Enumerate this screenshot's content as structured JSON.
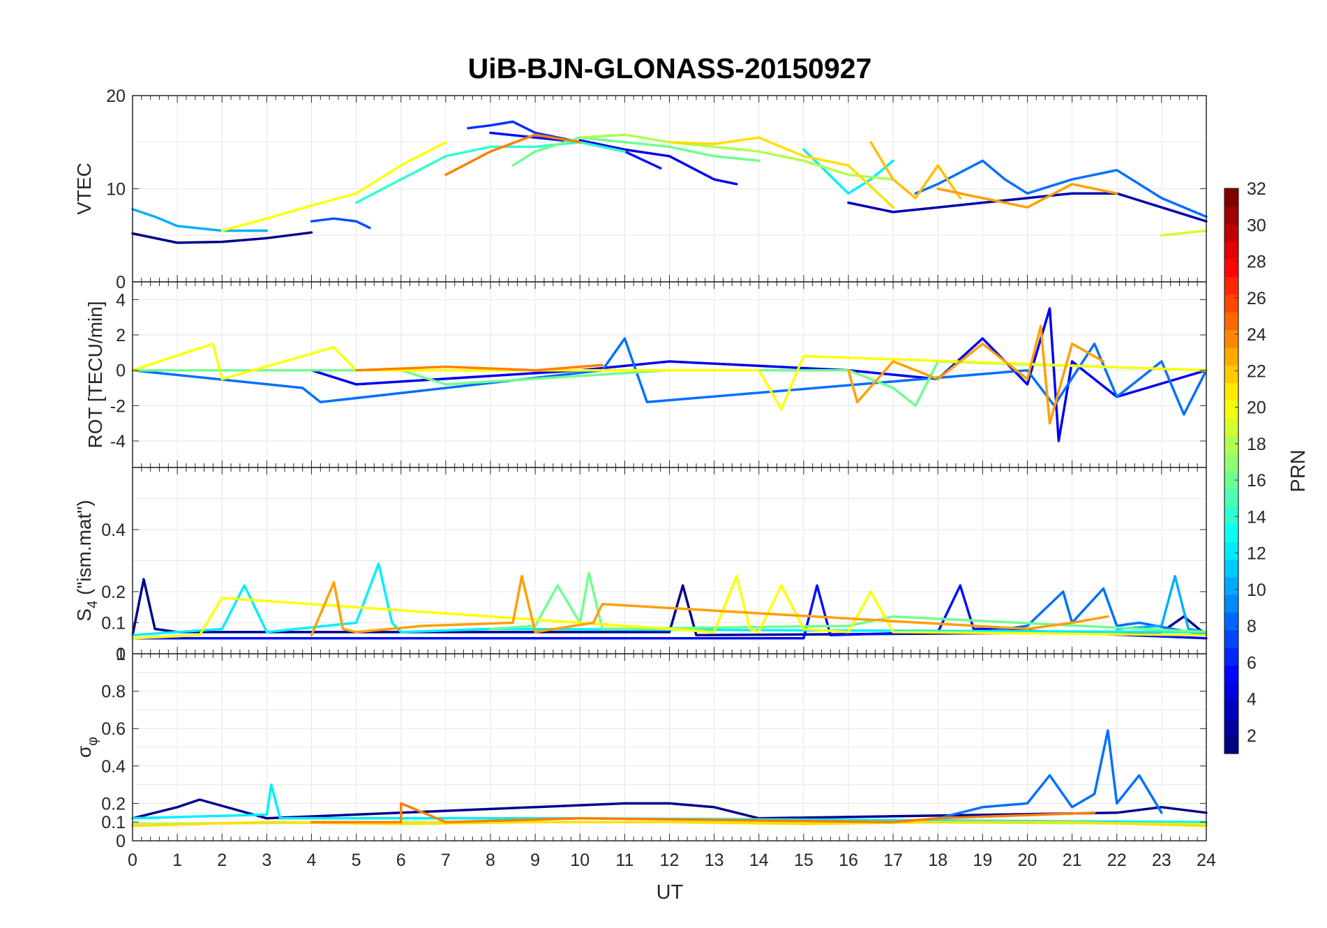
{
  "figure": {
    "title": "UiB-BJN-GLONASS-20150927",
    "xlabel": "UT",
    "x_ticks": [
      "0",
      "1",
      "2",
      "3",
      "4",
      "5",
      "6",
      "7",
      "8",
      "9",
      "10",
      "11",
      "12",
      "13",
      "14",
      "15",
      "16",
      "17",
      "18",
      "19",
      "20",
      "21",
      "22",
      "23",
      "24"
    ]
  },
  "panels": [
    {
      "ylabel": "VTEC",
      "ylabel_sub": "",
      "ylabel_tail": "",
      "y_tick_labels": [
        "0",
        "10",
        "20"
      ]
    },
    {
      "ylabel": "ROT [TECU/min]",
      "ylabel_sub": "",
      "ylabel_tail": "",
      "y_tick_labels": [
        "-4",
        "-2",
        "0",
        "2",
        "4"
      ]
    },
    {
      "ylabel": "S",
      "ylabel_sub": "4",
      "ylabel_tail": " (\"ism.mat\")",
      "y_tick_labels": [
        "0",
        "0.1",
        "0.2",
        "0.4"
      ]
    },
    {
      "ylabel": "σ",
      "ylabel_sub": "φ",
      "ylabel_tail": "",
      "y_tick_labels": [
        "0",
        "0.1",
        "0.2",
        "0.4",
        "0.6",
        "0.8",
        "1"
      ]
    }
  ],
  "colorbar": {
    "label": "PRN",
    "tick_labels": [
      "2",
      "4",
      "6",
      "8",
      "10",
      "12",
      "14",
      "16",
      "18",
      "20",
      "22",
      "24",
      "26",
      "28",
      "30",
      "32"
    ],
    "colormap": "jet"
  },
  "chart_data": [
    {
      "type": "line",
      "title": "UiB-BJN-GLONASS-20150927",
      "xlabel": "UT",
      "ylabel": "VTEC",
      "xlim": [
        0,
        24
      ],
      "ylim": [
        0,
        20
      ],
      "grid": true,
      "series": [
        {
          "prn": 1,
          "color": "#00008f",
          "x": [
            0,
            1,
            2,
            3,
            4
          ],
          "y": [
            5.2,
            4.2,
            4.3,
            4.7,
            5.3
          ]
        },
        {
          "prn": 2,
          "color": "#0000af",
          "x": [
            16,
            17,
            18,
            19,
            20,
            21,
            22,
            23,
            24
          ],
          "y": [
            8.5,
            7.5,
            8.0,
            8.5,
            9.0,
            9.5,
            9.5,
            8.0,
            6.5
          ]
        },
        {
          "prn": 4,
          "color": "#0000ef",
          "x": [
            10,
            11,
            12,
            13,
            13.5
          ],
          "y": [
            15.2,
            14.2,
            13.5,
            11,
            10.5
          ]
        },
        {
          "prn": 5,
          "color": "#000fff",
          "x": [
            8,
            9,
            10,
            11,
            11.8
          ],
          "y": [
            16,
            15.5,
            15,
            14,
            12.2
          ]
        },
        {
          "prn": 6,
          "color": "#002fff",
          "x": [
            7.5,
            8,
            8.5,
            9,
            10
          ],
          "y": [
            16.5,
            16.8,
            17.2,
            16,
            15
          ]
        },
        {
          "prn": 7,
          "color": "#004fff",
          "x": [
            4,
            4.5,
            5,
            5.3
          ],
          "y": [
            6.5,
            6.8,
            6.5,
            5.8
          ]
        },
        {
          "prn": 8,
          "color": "#006fff",
          "x": [
            17.5,
            18,
            19,
            19.5,
            20,
            21,
            22,
            23,
            24
          ],
          "y": [
            9.5,
            10.5,
            13,
            11,
            9.5,
            11,
            12,
            9,
            7
          ]
        },
        {
          "prn": 10,
          "color": "#00afff",
          "x": [
            0,
            0.5,
            1,
            2,
            3
          ],
          "y": [
            7.8,
            7.0,
            6.0,
            5.5,
            5.5
          ]
        },
        {
          "prn": 12,
          "color": "#00efff",
          "x": [
            15,
            16,
            16.5,
            17
          ],
          "y": [
            14.2,
            9.5,
            11,
            13
          ]
        },
        {
          "prn": 14,
          "color": "#2fffcf",
          "x": [
            5,
            6,
            7,
            8,
            9,
            10,
            11
          ],
          "y": [
            8.5,
            11,
            13.5,
            14.5,
            14.5,
            15,
            14
          ]
        },
        {
          "prn": 16,
          "color": "#6fff8f",
          "x": [
            8.5,
            9,
            10,
            11,
            12,
            13,
            14
          ],
          "y": [
            12.5,
            14,
            15.5,
            15,
            14.5,
            13.5,
            13
          ]
        },
        {
          "prn": 18,
          "color": "#afff4f",
          "x": [
            10,
            11,
            12,
            13,
            14,
            15,
            16,
            17
          ],
          "y": [
            15.5,
            15.8,
            15,
            14.5,
            14,
            13,
            11.5,
            11
          ]
        },
        {
          "prn": 19,
          "color": "#cfff2f",
          "x": [
            23,
            24
          ],
          "y": [
            5,
            5.5
          ]
        },
        {
          "prn": 20,
          "color": "#ffff00",
          "x": [
            2,
            3,
            4,
            5,
            6,
            7
          ],
          "y": [
            5.5,
            6.8,
            8.2,
            9.5,
            12.5,
            15
          ]
        },
        {
          "prn": 21,
          "color": "#ffdf00",
          "x": [
            12,
            13,
            14,
            15,
            16,
            17
          ],
          "y": [
            15,
            14.8,
            15.5,
            13.5,
            12.5,
            8
          ]
        },
        {
          "prn": 22,
          "color": "#ffbf00",
          "x": [
            16.5,
            17,
            17.5,
            18,
            18.5
          ],
          "y": [
            15,
            11,
            9,
            12.5,
            9
          ]
        },
        {
          "prn": 23,
          "color": "#ff9f00",
          "x": [
            18,
            19,
            20,
            21,
            22
          ],
          "y": [
            10,
            9,
            8,
            10.5,
            9.5
          ]
        },
        {
          "prn": 24,
          "color": "#ff7f00",
          "x": [
            7,
            8,
            9,
            10
          ],
          "y": [
            11.5,
            14,
            15.8,
            15
          ]
        }
      ]
    },
    {
      "type": "line",
      "xlabel": "UT",
      "ylabel": "ROT [TECU/min]",
      "xlim": [
        0,
        24
      ],
      "ylim": [
        -5.5,
        5
      ],
      "grid": true,
      "series": [
        {
          "prn": 4,
          "color": "#0000ef",
          "x": [
            0,
            4,
            5,
            10,
            12,
            16,
            18,
            19,
            20,
            20.5,
            20.7,
            21,
            22,
            24
          ],
          "y": [
            0,
            0,
            -0.8,
            0,
            0.5,
            0,
            -0.5,
            1.8,
            -0.8,
            3.5,
            -4,
            0.5,
            -1.5,
            0
          ]
        },
        {
          "prn": 8,
          "color": "#006fff",
          "x": [
            0,
            3.8,
            4.2,
            10.5,
            11,
            11.5,
            20,
            20.6,
            21.5,
            22,
            23,
            23.5,
            24
          ],
          "y": [
            0,
            -1,
            -1.8,
            0,
            1.8,
            -1.8,
            0,
            -2,
            1.5,
            -1.5,
            0.5,
            -2.5,
            0
          ]
        },
        {
          "prn": 16,
          "color": "#6fff8f",
          "x": [
            0,
            6,
            7,
            12,
            16,
            17,
            17.5,
            18,
            24
          ],
          "y": [
            0,
            0,
            -0.8,
            0,
            0,
            -1,
            -2,
            0.5,
            0
          ]
        },
        {
          "prn": 20,
          "color": "#ffff00",
          "x": [
            0,
            1.8,
            2,
            4.5,
            5,
            14,
            14.5,
            15,
            24
          ],
          "y": [
            0,
            1.5,
            -0.5,
            1.3,
            0,
            0,
            -2.2,
            0.8,
            0
          ]
        },
        {
          "prn": 23,
          "color": "#ff9f00",
          "x": [
            16,
            16.2,
            17,
            18,
            19,
            20,
            20.3,
            20.5,
            21,
            21.7
          ],
          "y": [
            0,
            -1.8,
            0.5,
            -0.5,
            1.5,
            -0.5,
            2.5,
            -3,
            1.5,
            0.5
          ]
        },
        {
          "prn": 24,
          "color": "#ff7f00",
          "x": [
            5,
            7,
            9,
            10.5
          ],
          "y": [
            0,
            0.2,
            0,
            0.3
          ]
        }
      ]
    },
    {
      "type": "line",
      "xlabel": "UT",
      "ylabel": "S4 (\"ism.mat\")",
      "xlim": [
        0,
        24
      ],
      "ylim": [
        0,
        0.6
      ],
      "grid": true,
      "series": [
        {
          "prn": 1,
          "color": "#00008f",
          "x": [
            0,
            0.25,
            0.5,
            1,
            12,
            12.3,
            12.6,
            23,
            23.5,
            24
          ],
          "y": [
            0.06,
            0.24,
            0.08,
            0.07,
            0.07,
            0.22,
            0.06,
            0.07,
            0.12,
            0.06
          ]
        },
        {
          "prn": 5,
          "color": "#000fff",
          "x": [
            0,
            15,
            15.3,
            15.6,
            18,
            18.5,
            18.8,
            19,
            24
          ],
          "y": [
            0.05,
            0.05,
            0.22,
            0.06,
            0.07,
            0.22,
            0.08,
            0.08,
            0.05
          ]
        },
        {
          "prn": 8,
          "color": "#006fff",
          "x": [
            19,
            20,
            20.8,
            21,
            21.7,
            22,
            22.5,
            24
          ],
          "y": [
            0.07,
            0.09,
            0.2,
            0.1,
            0.21,
            0.09,
            0.1,
            0.06
          ]
        },
        {
          "prn": 10,
          "color": "#00afff",
          "x": [
            22,
            23,
            23.3,
            23.6,
            24
          ],
          "y": [
            0.08,
            0.09,
            0.25,
            0.08,
            0.07
          ]
        },
        {
          "prn": 12,
          "color": "#00efff",
          "x": [
            0,
            2,
            2.5,
            3,
            5,
            5.5,
            5.8,
            6,
            8,
            24
          ],
          "y": [
            0.06,
            0.08,
            0.22,
            0.07,
            0.1,
            0.29,
            0.1,
            0.07,
            0.08,
            0.07
          ]
        },
        {
          "prn": 16,
          "color": "#6fff8f",
          "x": [
            8,
            9,
            9.5,
            10,
            10.2,
            10.5,
            16,
            17,
            24
          ],
          "y": [
            0.08,
            0.09,
            0.22,
            0.1,
            0.26,
            0.08,
            0.09,
            0.12,
            0.07
          ]
        },
        {
          "prn": 20,
          "color": "#ffff00",
          "x": [
            0,
            1.5,
            2,
            13,
            13.5,
            13.8,
            14,
            14.5,
            15,
            16,
            16.5,
            17,
            24
          ],
          "y": [
            0.05,
            0.06,
            0.18,
            0.07,
            0.25,
            0.08,
            0.07,
            0.22,
            0.08,
            0.07,
            0.2,
            0.07,
            0.06
          ]
        },
        {
          "prn": 23,
          "color": "#ff9f00",
          "x": [
            4,
            4.5,
            4.7,
            5,
            6.5,
            8.5,
            8.7,
            9,
            10.3,
            10.5,
            20,
            21,
            21.8
          ],
          "y": [
            0.06,
            0.23,
            0.08,
            0.07,
            0.09,
            0.1,
            0.25,
            0.07,
            0.1,
            0.16,
            0.08,
            0.1,
            0.12
          ]
        }
      ]
    },
    {
      "type": "line",
      "xlabel": "UT",
      "ylabel": "σφ",
      "xlim": [
        0,
        24
      ],
      "ylim": [
        0,
        1
      ],
      "grid": true,
      "series": [
        {
          "prn": 1,
          "color": "#00008f",
          "x": [
            0,
            1,
            1.5,
            3,
            11,
            12,
            13,
            14,
            22,
            23,
            24
          ],
          "y": [
            0.12,
            0.18,
            0.22,
            0.12,
            0.2,
            0.2,
            0.18,
            0.12,
            0.15,
            0.18,
            0.15
          ]
        },
        {
          "prn": 8,
          "color": "#006fff",
          "x": [
            18,
            19,
            20,
            20.5,
            21,
            21.5,
            21.8,
            22,
            22.5,
            23
          ],
          "y": [
            0.12,
            0.18,
            0.2,
            0.35,
            0.18,
            0.25,
            0.59,
            0.2,
            0.35,
            0.15
          ]
        },
        {
          "prn": 12,
          "color": "#00efff",
          "x": [
            0,
            3,
            3.1,
            3.3,
            10,
            24
          ],
          "y": [
            0.12,
            0.14,
            0.3,
            0.12,
            0.12,
            0.1
          ]
        },
        {
          "prn": 18,
          "color": "#afff4f",
          "x": [
            0,
            6,
            12,
            17,
            24
          ],
          "y": [
            0.09,
            0.1,
            0.1,
            0.1,
            0.09
          ]
        },
        {
          "prn": 21,
          "color": "#ffdf00",
          "x": [
            0,
            3,
            6,
            9,
            12,
            15,
            18,
            21,
            24
          ],
          "y": [
            0.08,
            0.1,
            0.09,
            0.1,
            0.1,
            0.09,
            0.1,
            0.1,
            0.08
          ]
        },
        {
          "prn": 24,
          "color": "#ff7f00",
          "x": [
            4,
            6,
            6,
            7,
            10,
            17,
            18,
            21.5
          ],
          "y": [
            0.1,
            0.1,
            0.2,
            0.1,
            0.12,
            0.1,
            0.12,
            0.15
          ]
        }
      ]
    }
  ]
}
